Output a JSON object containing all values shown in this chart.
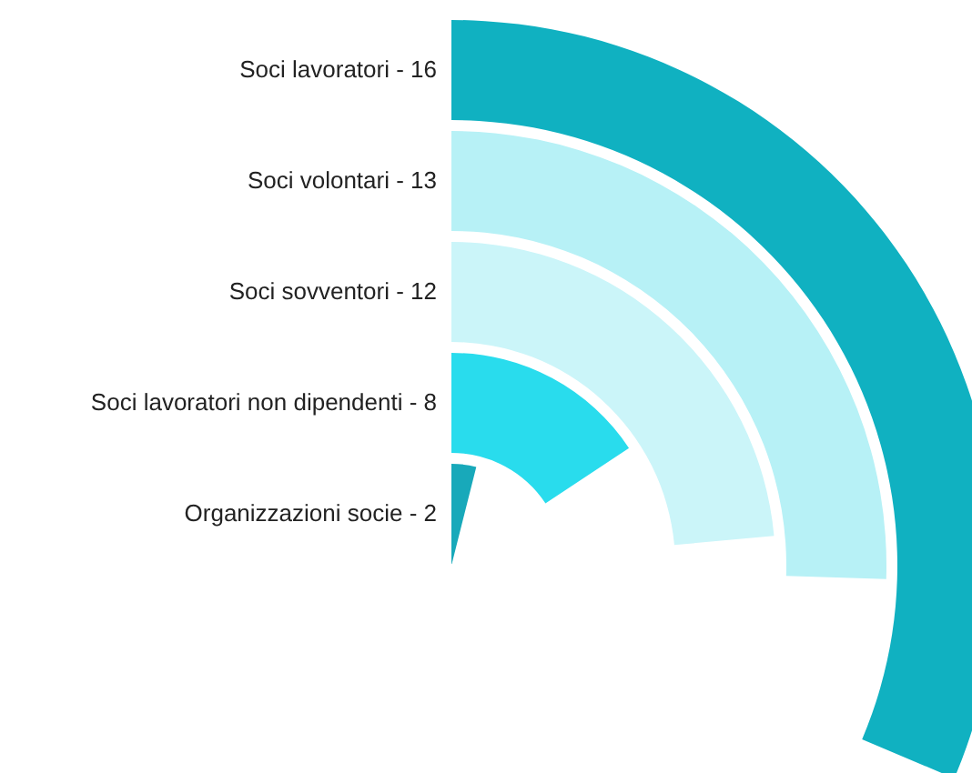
{
  "chart_data": {
    "type": "other",
    "categories": [
      "Soci lavoratori -",
      "Soci volontari -",
      "Soci sovventori -",
      "Soci lavoratori non dipendenti -",
      "Organizzazioni socie -"
    ],
    "values": [
      16,
      13,
      12,
      8,
      2
    ],
    "colors": [
      "#10b1c1",
      "#b7f1f6",
      "#cbf5f9",
      "#29dced",
      "#18a9ba"
    ],
    "data_labels": true
  }
}
